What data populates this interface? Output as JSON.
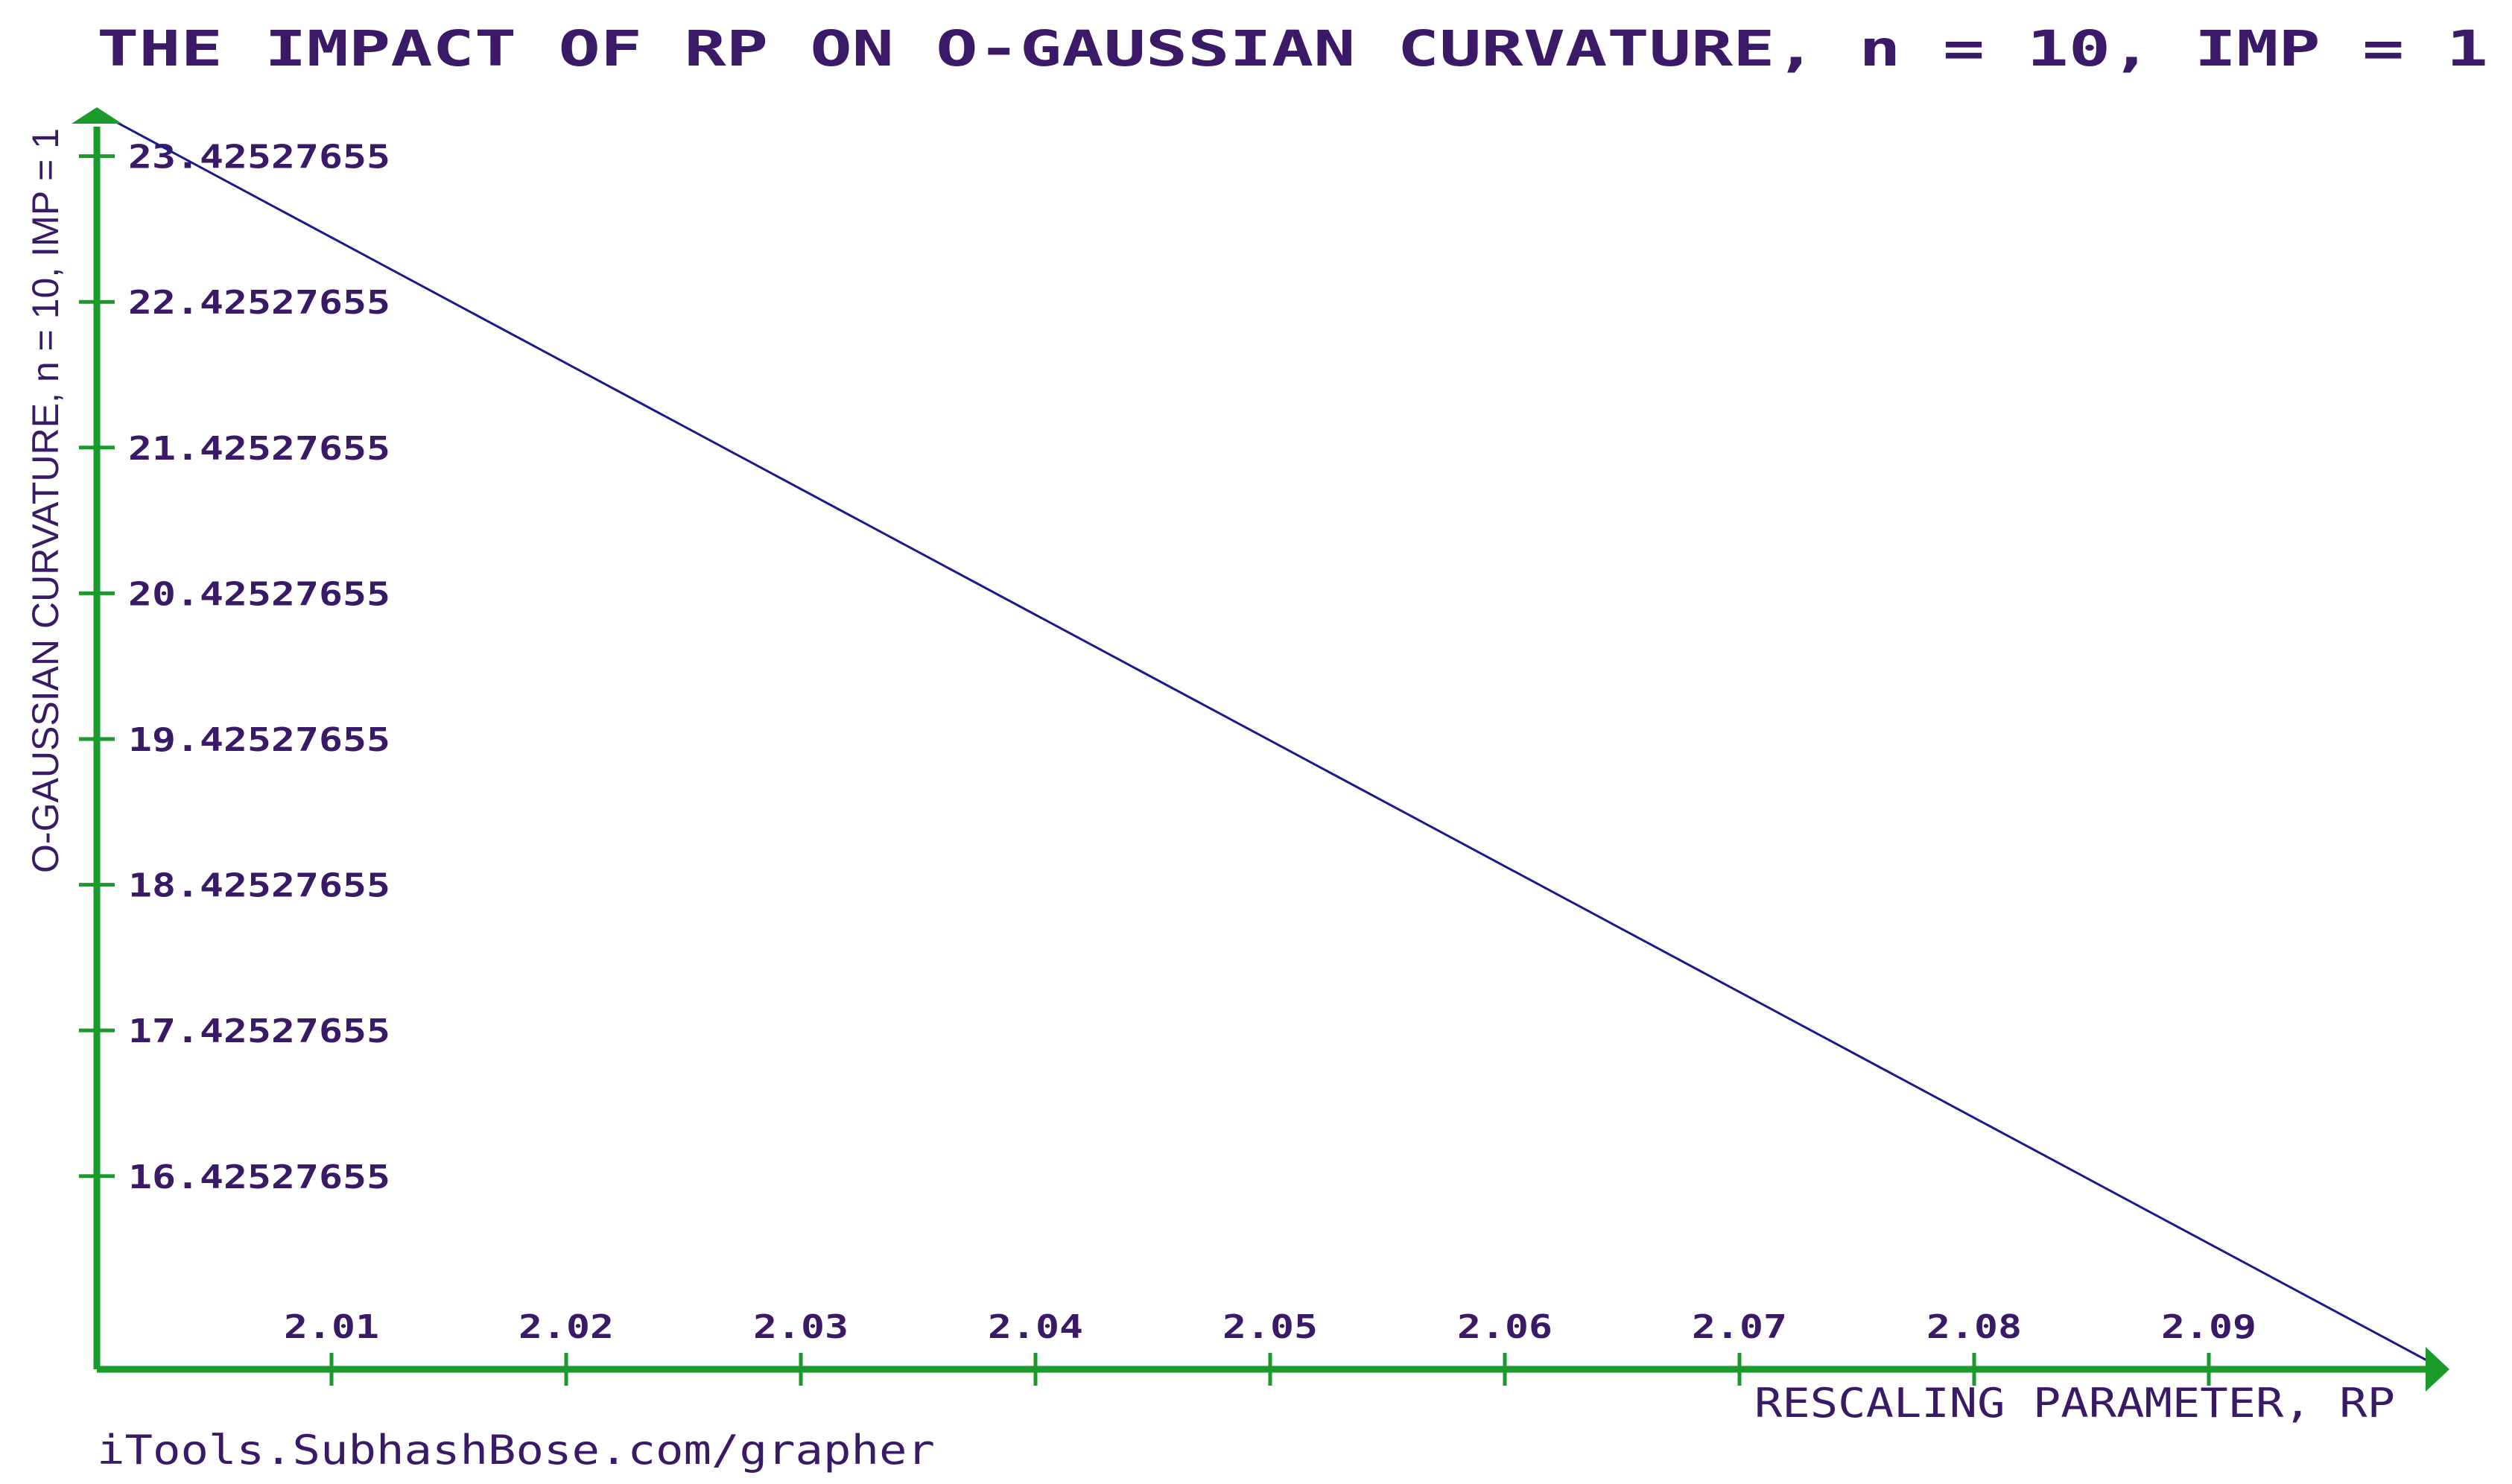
{
  "chart_data": {
    "type": "line",
    "title": "THE IMPACT OF RP ON O-GAUSSIAN CURVATURE, n = 10, IMP = 1",
    "xlabel": "RESCALING PARAMETER, RP",
    "ylabel": "O-GAUSSIAN  CURVATURE, n = 10, IMP = 1",
    "footer": "iTools.SubhashBose.com/grapher",
    "x_ticks": [
      "2.01",
      "2.02",
      "2.03",
      "2.04",
      "2.05",
      "2.06",
      "2.07",
      "2.08",
      "2.09"
    ],
    "y_ticks": [
      "23.42527655",
      "22.42527655",
      "21.42527655",
      "20.42527655",
      "19.42527655",
      "18.42527655",
      "17.42527655",
      "16.42527655"
    ],
    "xlim": [
      2.0,
      2.1
    ],
    "ylim": [
      15.1,
      23.73
    ],
    "series": [
      {
        "x": [
          2.0,
          2.1
        ],
        "y": [
          23.73,
          15.1
        ]
      }
    ],
    "grid": false,
    "colors": {
      "axis": "#1a9a2a",
      "line": "#1a1a8c",
      "text": "#3a1a66"
    }
  }
}
